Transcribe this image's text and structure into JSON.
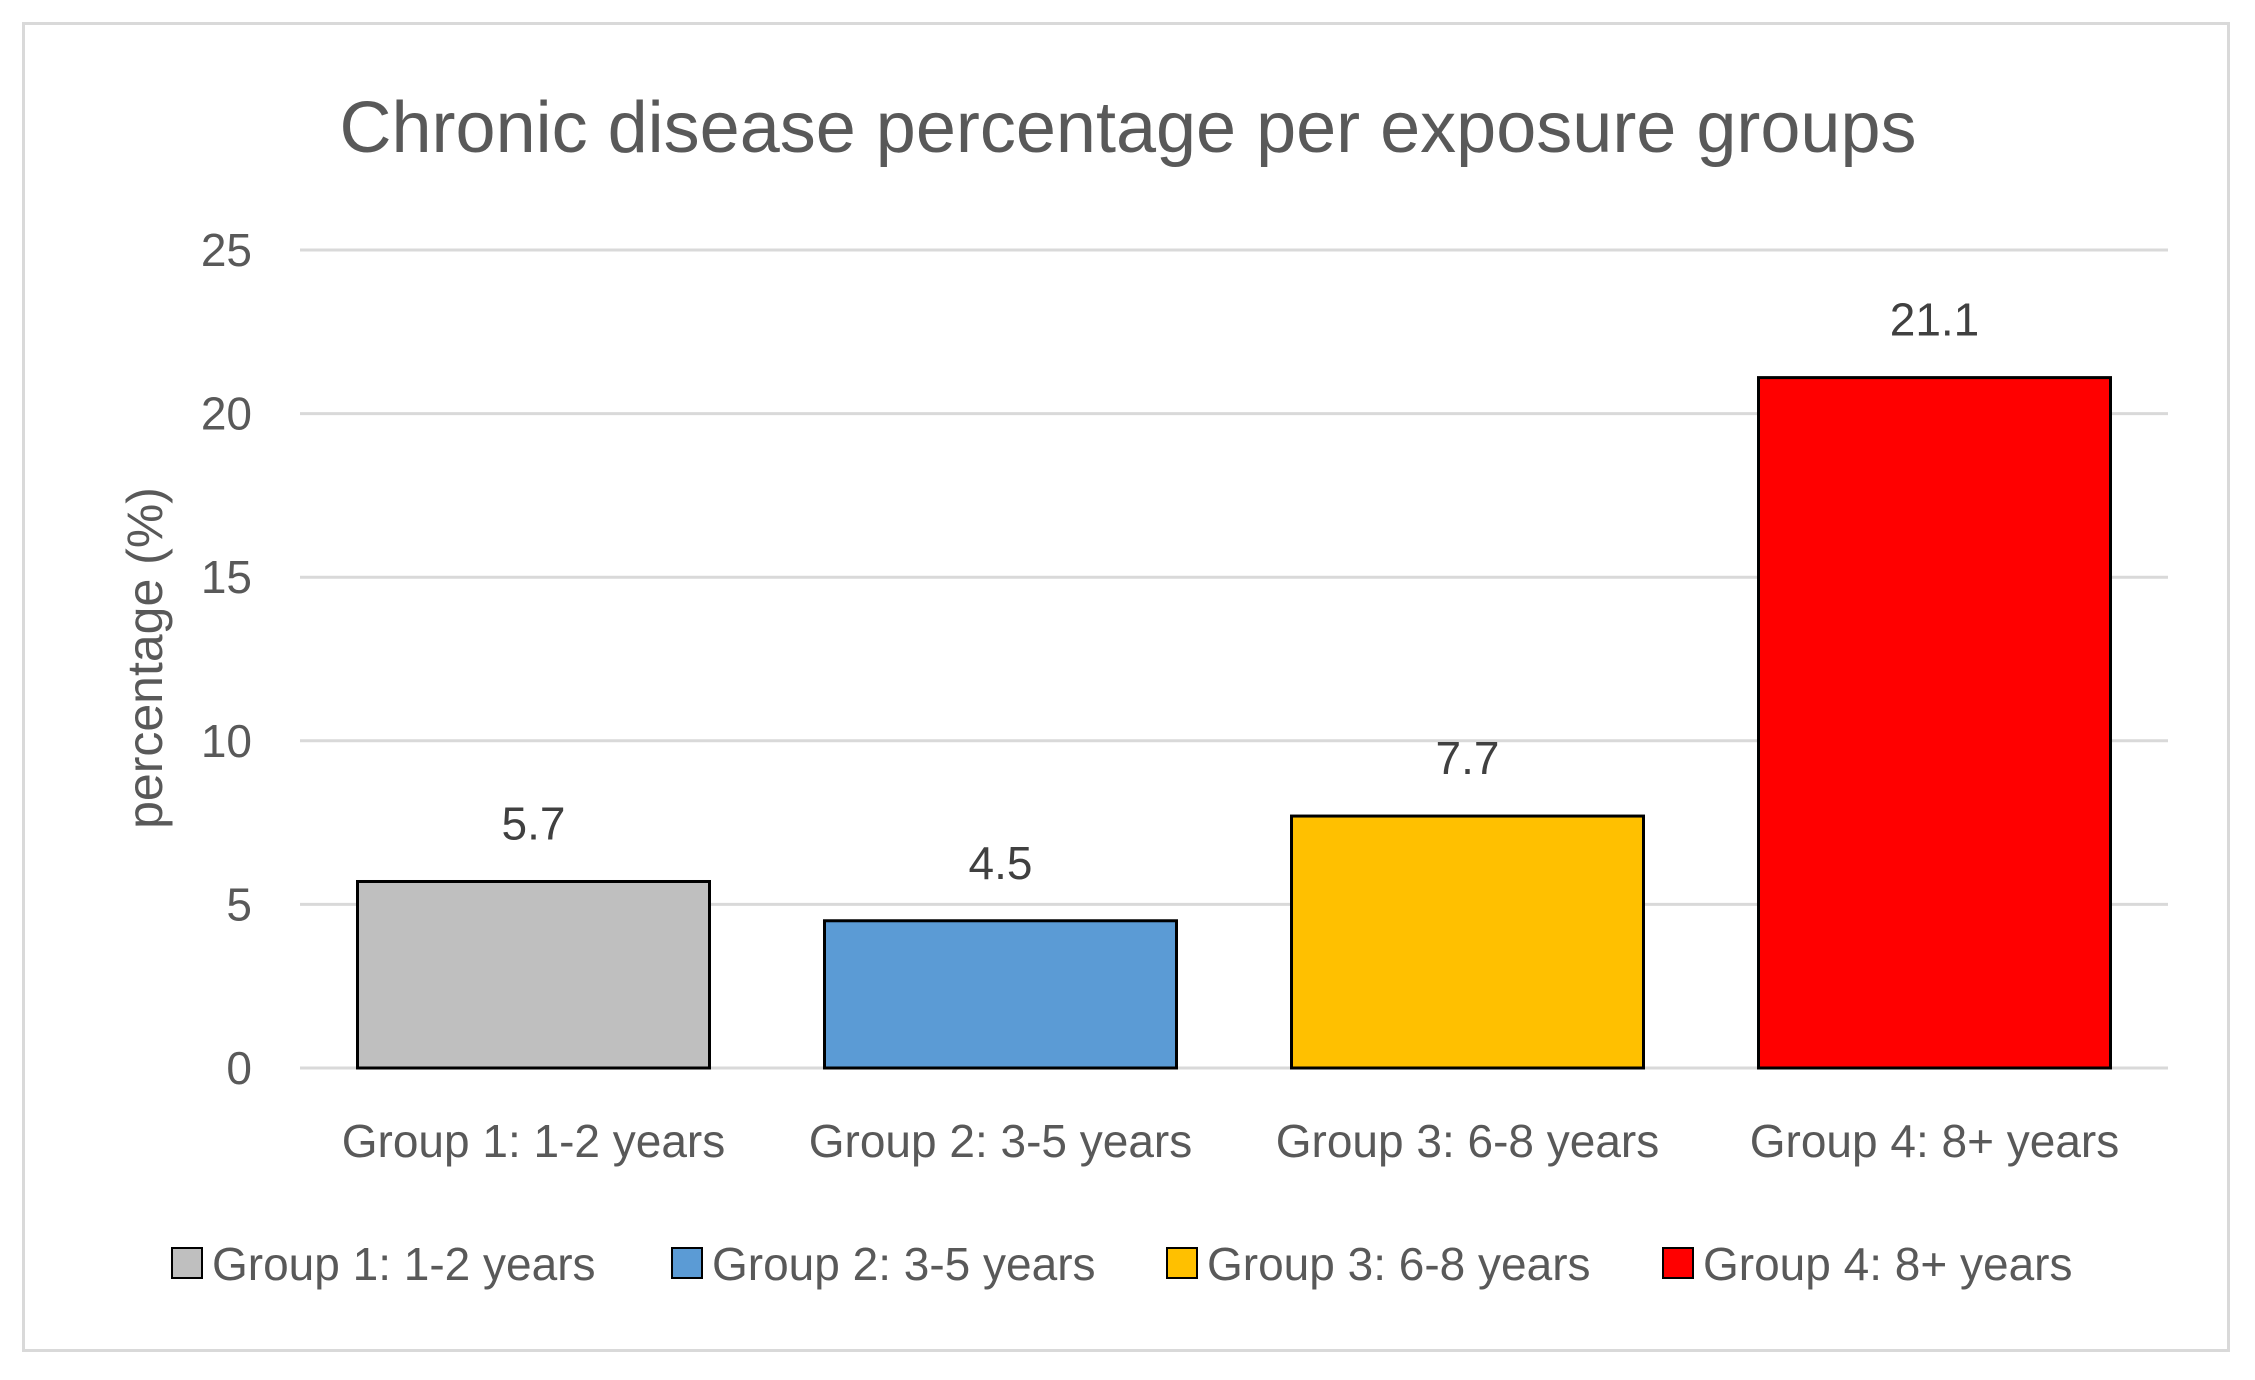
{
  "chart_data": {
    "type": "bar",
    "title": "Chronic disease percentage per exposure groups",
    "ylabel": "percentage (%)",
    "xlabel": "",
    "ylim": [
      0,
      25
    ],
    "yticks": [
      0,
      5,
      10,
      15,
      20,
      25
    ],
    "grid": true,
    "legend_position": "bottom",
    "categories": [
      "Group 1: 1-2 years",
      "Group 2: 3-5 years",
      "Group 3: 6-8 years",
      "Group 4: 8+ years"
    ],
    "values": [
      5.7,
      4.5,
      7.7,
      21.1
    ],
    "data_labels": [
      "5.7",
      "4.5",
      "7.7",
      "21.1"
    ],
    "colors": [
      "#bfbfbf",
      "#5b9bd5",
      "#ffc000",
      "#ff0000"
    ],
    "legend": [
      "Group 1: 1-2 years",
      "Group 2: 3-5 years",
      "Group 3: 6-8 years",
      "Group 4: 8+ years"
    ]
  }
}
